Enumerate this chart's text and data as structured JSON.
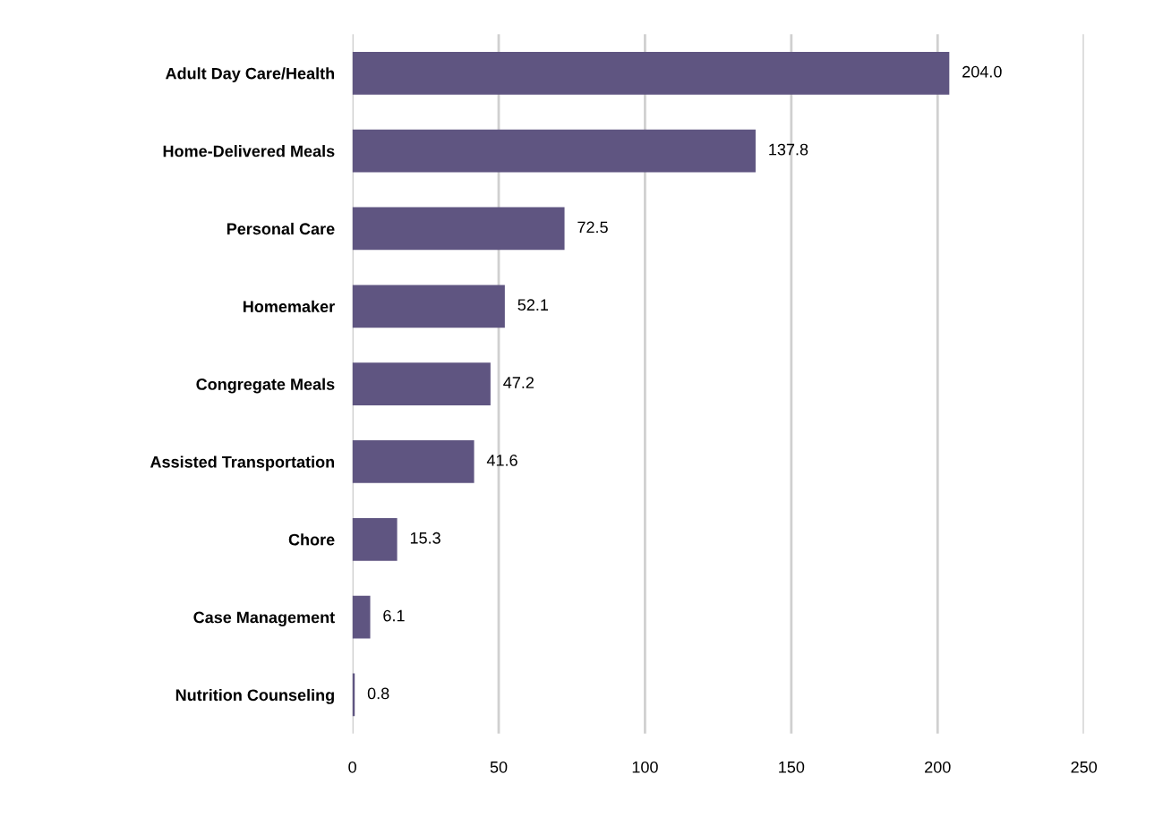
{
  "chart_data": {
    "type": "bar",
    "orientation": "horizontal",
    "categories": [
      "Adult Day Care/Health",
      "Home-Delivered Meals",
      "Personal Care",
      "Homemaker",
      "Congregate Meals",
      "Assisted Transportation",
      "Chore",
      "Case Management",
      "Nutrition Counseling"
    ],
    "values": [
      204.0,
      137.8,
      72.5,
      52.1,
      47.2,
      41.6,
      15.3,
      6.1,
      0.8
    ],
    "value_labels": [
      "204.0",
      "137.8",
      "72.5",
      "52.1",
      "47.2",
      "41.6",
      "15.3",
      "6.1",
      "0.8"
    ],
    "color": "#5f5581",
    "xlim": [
      0,
      250
    ],
    "xticks": [
      0,
      50,
      100,
      150,
      200,
      250
    ],
    "grid": "x",
    "legend": false
  }
}
